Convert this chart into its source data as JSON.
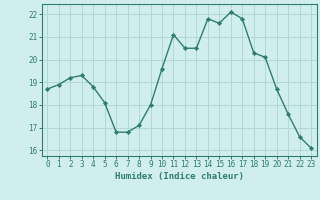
{
  "x": [
    0,
    1,
    2,
    3,
    4,
    5,
    6,
    7,
    8,
    9,
    10,
    11,
    12,
    13,
    14,
    15,
    16,
    17,
    18,
    19,
    20,
    21,
    22,
    23
  ],
  "y": [
    18.7,
    18.9,
    19.2,
    19.3,
    18.8,
    18.1,
    16.8,
    16.8,
    17.1,
    18.0,
    19.6,
    21.1,
    20.5,
    20.5,
    21.8,
    21.6,
    22.1,
    21.8,
    20.3,
    20.1,
    18.7,
    17.6,
    16.6,
    16.1
  ],
  "line_color": "#2e7d6e",
  "marker": "D",
  "marker_size": 2.2,
  "bg_color": "#d1eeee",
  "grid_color": "#b0d8d8",
  "xlabel": "Humidex (Indice chaleur)",
  "xlim": [
    -0.5,
    23.5
  ],
  "ylim": [
    15.75,
    22.45
  ],
  "yticks": [
    16,
    17,
    18,
    19,
    20,
    21,
    22
  ],
  "xticks": [
    0,
    1,
    2,
    3,
    4,
    5,
    6,
    7,
    8,
    9,
    10,
    11,
    12,
    13,
    14,
    15,
    16,
    17,
    18,
    19,
    20,
    21,
    22,
    23
  ],
  "tick_color": "#2e7d6e",
  "label_color": "#2e7d6e",
  "axis_color": "#2e7d6e",
  "line_width": 1.0,
  "tick_fontsize": 5.5,
  "xlabel_fontsize": 6.5
}
